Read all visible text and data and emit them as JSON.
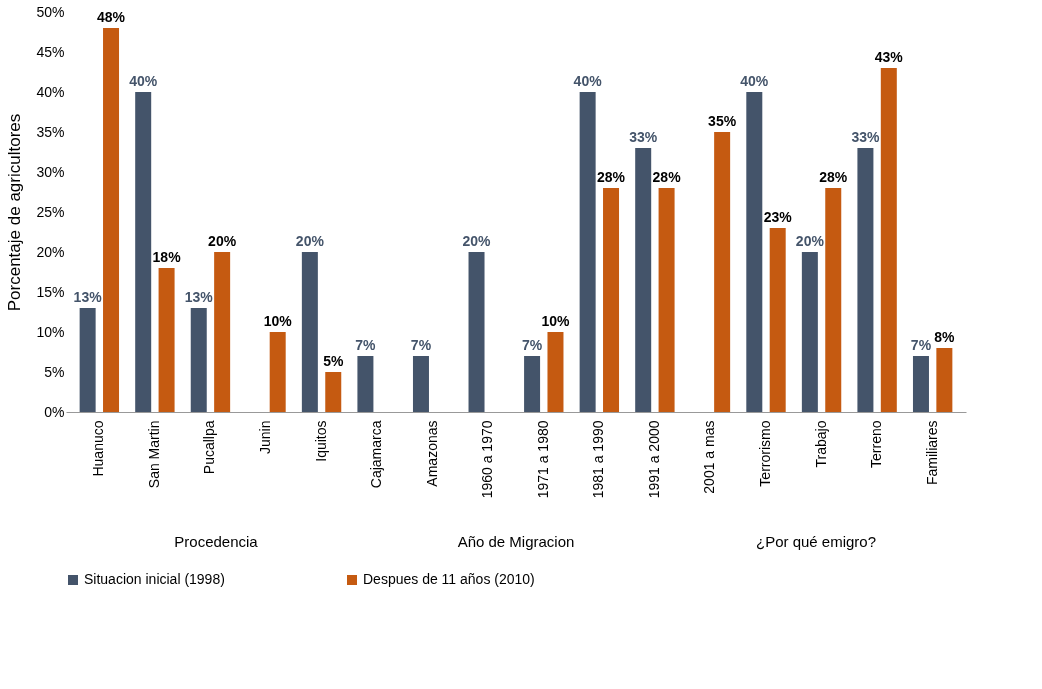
{
  "chart_data": {
    "type": "bar",
    "ylabel": "Porcentaje  de  agricultores",
    "categories": [
      "Huanuco",
      "San Martin",
      "Pucallpa",
      "Junin",
      "Iquitos",
      "Cajamarca",
      "Amazonas",
      "1960 a 1970",
      "1971 a 1980",
      "1981 a 1990",
      "1991 a 2000",
      "2001 a mas",
      "Terrorismo",
      "Trabajo",
      "Terreno",
      "Familiares"
    ],
    "series": [
      {
        "name": "Situacion inicial (1998)",
        "color": "#44546a",
        "values": [
          13,
          40,
          13,
          0,
          20,
          7,
          7,
          20,
          7,
          40,
          33,
          0,
          40,
          20,
          33,
          7
        ],
        "value_labels": [
          "13%",
          "40%",
          "13%",
          null,
          "20%",
          "7%",
          "7%",
          "20%",
          "7%",
          "40%",
          "33%",
          null,
          "40%",
          "20%",
          "33%",
          "7%"
        ]
      },
      {
        "name": "Despues de 11 años (2010)",
        "color": "#c55a11",
        "values": [
          48,
          18,
          20,
          10,
          5,
          0,
          0,
          0,
          10,
          28,
          28,
          35,
          23,
          28,
          43,
          8
        ],
        "value_labels": [
          "48%",
          "18%",
          "20%",
          "10%",
          "5%",
          null,
          null,
          null,
          "10%",
          "28%",
          "28%",
          "35%",
          "23%",
          "28%",
          "43%",
          "8%"
        ]
      }
    ],
    "ylim": [
      0,
      50
    ],
    "yticks": [
      {
        "value": 0,
        "label": "0%"
      },
      {
        "value": 5,
        "label": "5%"
      },
      {
        "value": 10,
        "label": "10%"
      },
      {
        "value": 15,
        "label": "15%"
      },
      {
        "value": 20,
        "label": "20%"
      },
      {
        "value": 25,
        "label": "25%"
      },
      {
        "value": 30,
        "label": "30%"
      },
      {
        "value": 35,
        "label": "35%"
      },
      {
        "value": 40,
        "label": "40%"
      },
      {
        "value": 45,
        "label": "45%"
      },
      {
        "value": 50,
        "label": "50%"
      }
    ],
    "annotations": [
      "Procedencia",
      "Año de Migracion",
      "¿Por qué emigro?"
    ],
    "grid": false,
    "legend": "bottom"
  }
}
